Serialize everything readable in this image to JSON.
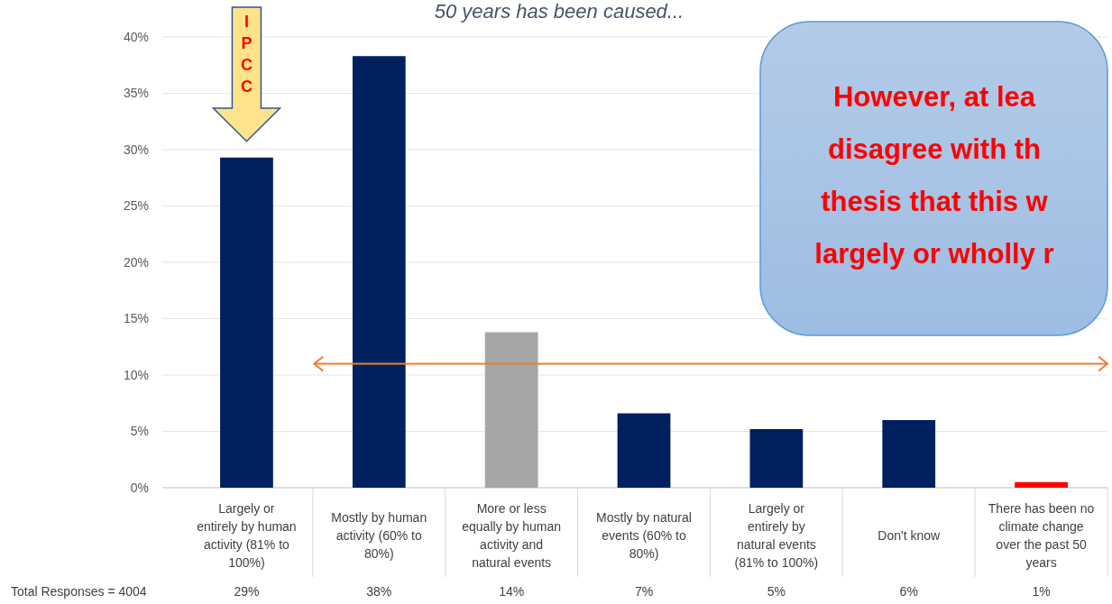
{
  "chart_data": {
    "type": "bar",
    "title": "50 years has been caused...",
    "categories": [
      "Largely or entirely by human activity (81% to 100%)",
      "Mostly by human activity (60% to 80%)",
      "More or less equally by human activity and natural events",
      "Mostly by natural events (60% to 80%)",
      "Largely or entirely by natural events (81% to 100%)",
      "Don't know",
      "There has been no climate change over the past 50 years"
    ],
    "values": [
      29.3,
      38.3,
      13.8,
      6.6,
      5.2,
      6.0,
      0.5
    ],
    "colors": [
      "#002060",
      "#002060",
      "#a6a6a6",
      "#002060",
      "#002060",
      "#002060",
      "#ff0000"
    ],
    "value_labels": [
      "29%",
      "38%",
      "14%",
      "7%",
      "5%",
      "6%",
      "1%"
    ],
    "ylim": [
      0,
      40
    ],
    "yticks": [
      {
        "value": 0,
        "label": "0%"
      },
      {
        "value": 5,
        "label": "5%"
      },
      {
        "value": 10,
        "label": "10%"
      },
      {
        "value": 15,
        "label": "15%"
      },
      {
        "value": 20,
        "label": "20%"
      },
      {
        "value": 25,
        "label": "25%"
      },
      {
        "value": 30,
        "label": "30%"
      },
      {
        "value": 35,
        "label": "35%"
      },
      {
        "value": 40,
        "label": "40%"
      }
    ],
    "grid": "y",
    "ref_lines": [
      {
        "axis": "y",
        "value": 11,
        "color": "#ed7d31"
      }
    ],
    "annotations": [
      "IPCC",
      "However, at lea disagree with th thesis that this w largely or wholly r",
      "Total Responses =  4004"
    ]
  }
}
